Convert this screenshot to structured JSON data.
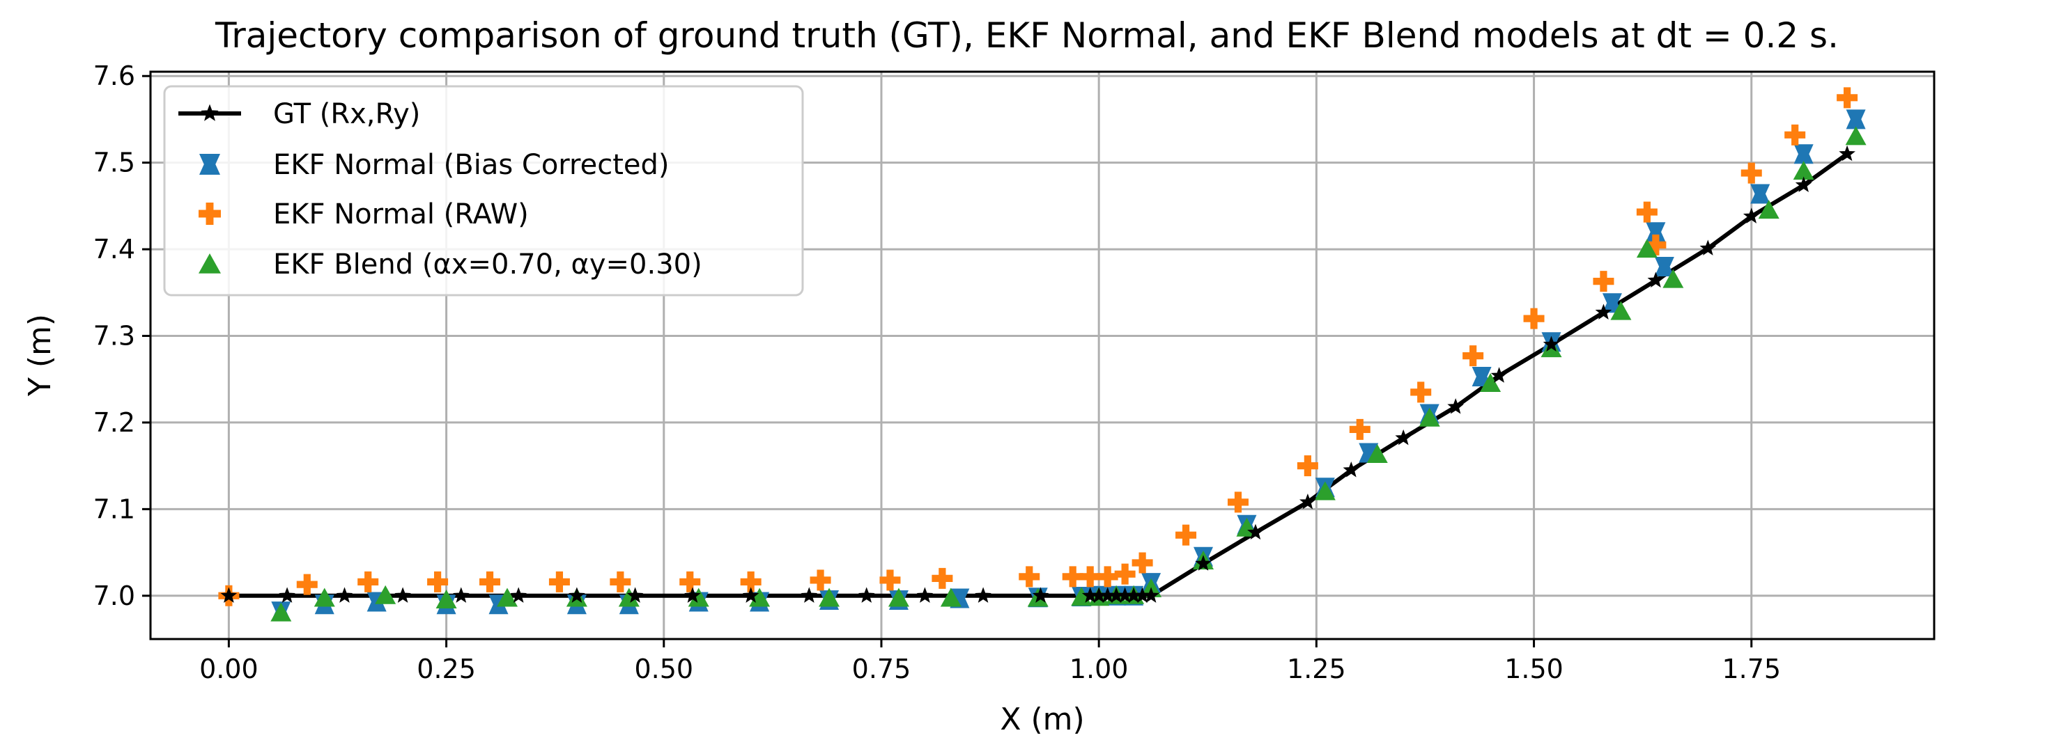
{
  "chart_data": {
    "type": "scatter",
    "title": "Trajectory comparison of ground truth (GT), EKF Normal, and EKF Blend models at dt = 0.2 s.",
    "xlabel": "X (m)",
    "ylabel": "Y (m)",
    "xlim": [
      -0.09,
      1.96
    ],
    "ylim": [
      6.95,
      7.605
    ],
    "xticks": [
      0.0,
      0.25,
      0.5,
      0.75,
      1.0,
      1.25,
      1.5,
      1.75
    ],
    "xtick_labels": [
      "0.00",
      "0.25",
      "0.50",
      "0.75",
      "1.00",
      "1.25",
      "1.50",
      "1.75"
    ],
    "yticks": [
      7.0,
      7.1,
      7.2,
      7.3,
      7.4,
      7.5,
      7.6
    ],
    "ytick_labels": [
      "7.0",
      "7.1",
      "7.2",
      "7.3",
      "7.4",
      "7.5",
      "7.6"
    ],
    "grid": true,
    "legend_position": "upper-left",
    "series": [
      {
        "name": "GT (Rx,Ry)",
        "style": "line-star",
        "color": "#000000",
        "x": [
          0.0,
          0.067,
          0.133,
          0.2,
          0.267,
          0.333,
          0.4,
          0.467,
          0.533,
          0.6,
          0.667,
          0.733,
          0.8,
          0.867,
          0.933,
          0.99,
          1.0,
          1.01,
          1.02,
          1.03,
          1.04,
          1.05,
          1.06,
          1.12,
          1.18,
          1.24,
          1.29,
          1.35,
          1.41,
          1.46,
          1.52,
          1.58,
          1.64,
          1.7,
          1.75,
          1.81,
          1.86
        ],
        "y": [
          7.0,
          7.0,
          7.0,
          7.0,
          7.0,
          7.0,
          7.0,
          7.0,
          7.0,
          7.0,
          7.0,
          7.0,
          7.0,
          7.0,
          7.0,
          7.0,
          7.0,
          7.0,
          7.0,
          7.0,
          7.0,
          7.0,
          7.0,
          7.037,
          7.073,
          7.108,
          7.145,
          7.182,
          7.218,
          7.254,
          7.29,
          7.327,
          7.364,
          7.401,
          7.438,
          7.474,
          7.51
        ]
      },
      {
        "name": "EKF Normal (Bias Corrected)",
        "style": "square",
        "color": "#1f77b4",
        "x": [
          0.06,
          0.11,
          0.17,
          0.25,
          0.31,
          0.4,
          0.46,
          0.54,
          0.61,
          0.69,
          0.77,
          0.84,
          0.93,
          0.98,
          1.0,
          1.02,
          1.04,
          1.06,
          1.12,
          1.17,
          1.26,
          1.31,
          1.38,
          1.44,
          1.52,
          1.59,
          1.64,
          1.65,
          1.76,
          1.81,
          1.87
        ],
        "y": [
          6.982,
          6.99,
          6.993,
          6.99,
          6.99,
          6.99,
          6.99,
          6.993,
          6.993,
          6.995,
          6.995,
          6.997,
          6.998,
          6.999,
          7.0,
          7.0,
          7.0,
          7.015,
          7.045,
          7.082,
          7.125,
          7.165,
          7.21,
          7.253,
          7.293,
          7.338,
          7.42,
          7.38,
          7.464,
          7.51,
          7.55
        ]
      },
      {
        "name": "EKF Normal (RAW)",
        "style": "plus",
        "color": "#ff7f0e",
        "x": [
          0.0,
          0.09,
          0.16,
          0.24,
          0.3,
          0.38,
          0.45,
          0.53,
          0.6,
          0.68,
          0.76,
          0.82,
          0.92,
          0.97,
          0.99,
          1.01,
          1.03,
          1.05,
          1.1,
          1.16,
          1.24,
          1.3,
          1.37,
          1.43,
          1.5,
          1.58,
          1.63,
          1.64,
          1.75,
          1.8,
          1.86
        ],
        "y": [
          7.0,
          7.013,
          7.016,
          7.016,
          7.016,
          7.016,
          7.016,
          7.016,
          7.016,
          7.018,
          7.018,
          7.02,
          7.022,
          7.022,
          7.022,
          7.022,
          7.025,
          7.038,
          7.07,
          7.108,
          7.15,
          7.192,
          7.235,
          7.277,
          7.32,
          7.363,
          7.443,
          7.405,
          7.488,
          7.532,
          7.575
        ]
      },
      {
        "name": "EKF Blend (αx=0.70, αy=0.30)",
        "style": "triangle",
        "color": "#2ca02c",
        "x": [
          0.06,
          0.11,
          0.18,
          0.25,
          0.32,
          0.4,
          0.46,
          0.54,
          0.61,
          0.69,
          0.77,
          0.83,
          0.93,
          0.98,
          1.0,
          1.02,
          1.04,
          1.06,
          1.12,
          1.17,
          1.26,
          1.32,
          1.38,
          1.45,
          1.52,
          1.6,
          1.63,
          1.66,
          1.77,
          1.81,
          1.87
        ],
        "y": [
          6.98,
          6.997,
          7.0,
          6.995,
          6.997,
          6.997,
          6.997,
          6.997,
          6.997,
          6.997,
          6.997,
          6.997,
          6.997,
          6.998,
          6.998,
          7.0,
          7.0,
          7.008,
          7.04,
          7.078,
          7.12,
          7.163,
          7.205,
          7.245,
          7.285,
          7.328,
          7.4,
          7.365,
          7.445,
          7.49,
          7.53
        ]
      }
    ]
  }
}
